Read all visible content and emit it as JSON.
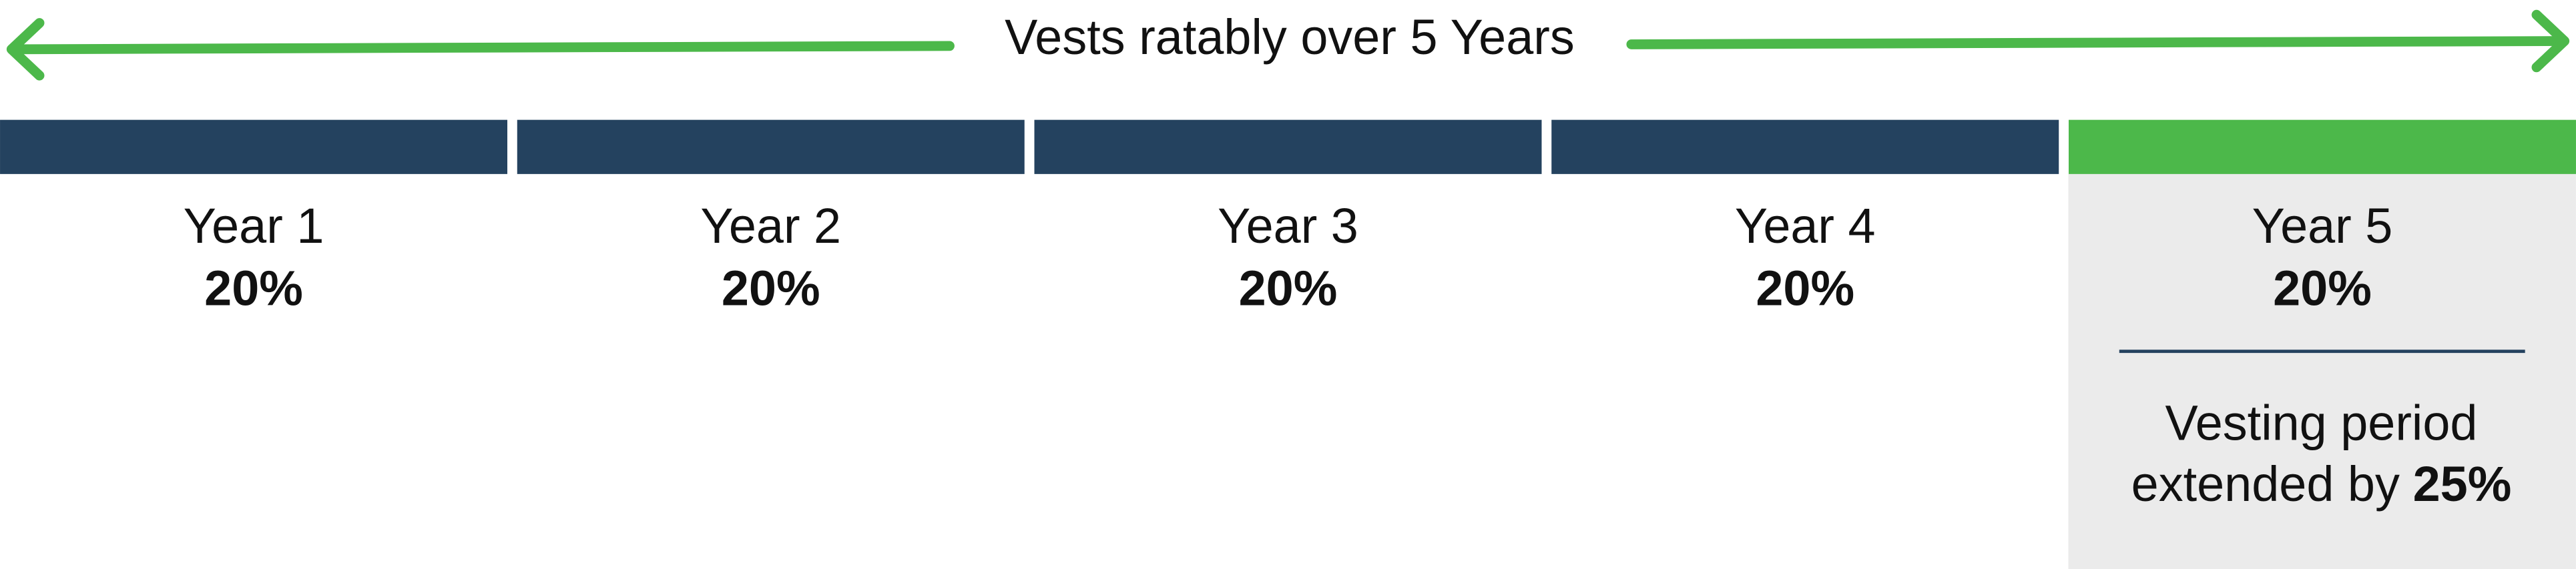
{
  "header": {
    "title": "Vests ratably over 5 Years"
  },
  "years": [
    {
      "label": "Year 1",
      "percent": "20%"
    },
    {
      "label": "Year 2",
      "percent": "20%"
    },
    {
      "label": "Year 3",
      "percent": "20%"
    },
    {
      "label": "Year 4",
      "percent": "20%"
    },
    {
      "label": "Year 5",
      "percent": "20%"
    }
  ],
  "note": {
    "line1": "Vesting period",
    "line2": "extended by",
    "emphasis": "25%"
  }
}
